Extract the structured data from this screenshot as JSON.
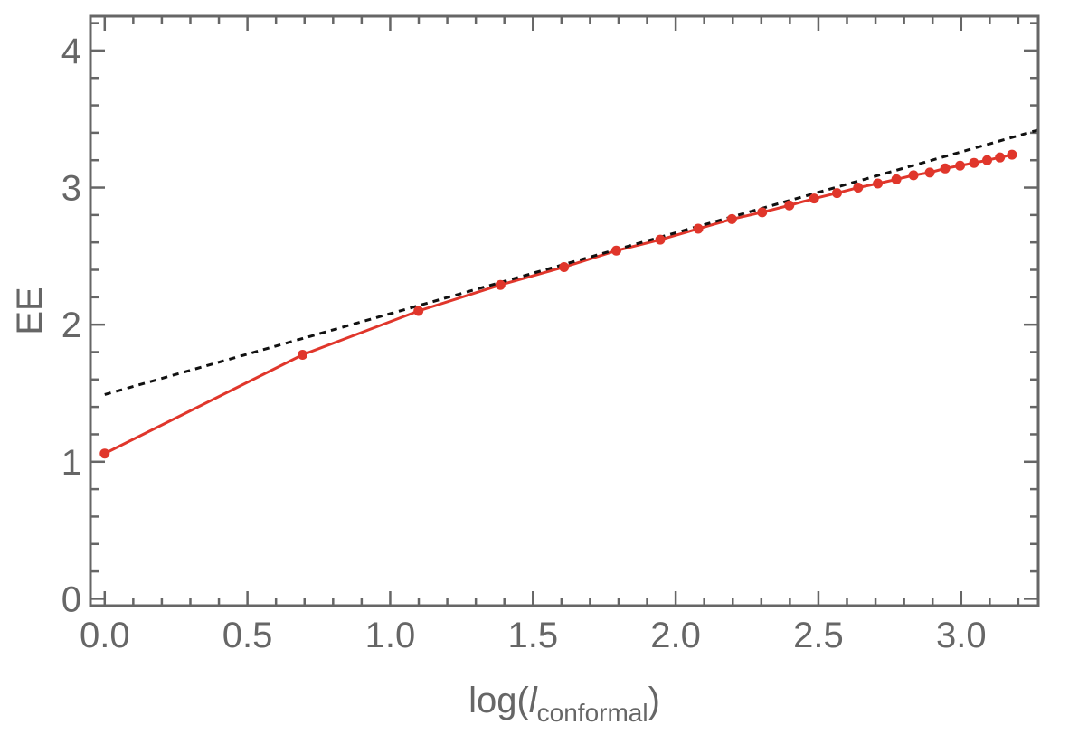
{
  "chart_data": {
    "type": "line",
    "title": "",
    "xlabel": {
      "main": "log(",
      "italic": "l",
      "sub": "conformal",
      "close": ")"
    },
    "ylabel": "EE",
    "xlim": [
      -0.05,
      3.27
    ],
    "ylim": [
      -0.05,
      4.25
    ],
    "x_ticks": [
      0.0,
      0.5,
      1.0,
      1.5,
      2.0,
      2.5,
      3.0
    ],
    "x_tick_labels": [
      "0.0",
      "0.5",
      "1.0",
      "1.5",
      "2.0",
      "2.5",
      "3.0"
    ],
    "y_ticks": [
      0,
      1,
      2,
      3,
      4
    ],
    "y_tick_labels": [
      "0",
      "1",
      "2",
      "3",
      "4"
    ],
    "x_minor_step": 0.1,
    "y_minor_step": 0.2,
    "grid": false,
    "frame": true,
    "series": [
      {
        "kind": "line+markers",
        "color": "#e0362b",
        "x": [
          0.0,
          0.693,
          1.099,
          1.386,
          1.609,
          1.792,
          1.946,
          2.079,
          2.197,
          2.303,
          2.398,
          2.485,
          2.565,
          2.639,
          2.708,
          2.773,
          2.833,
          2.89,
          2.944,
          2.996,
          3.045,
          3.091,
          3.136,
          3.178
        ],
        "y": [
          1.06,
          1.78,
          2.1,
          2.29,
          2.42,
          2.54,
          2.62,
          2.7,
          2.77,
          2.82,
          2.87,
          2.92,
          2.96,
          3.0,
          3.03,
          3.06,
          3.09,
          3.11,
          3.14,
          3.16,
          3.18,
          3.2,
          3.22,
          3.24
        ]
      },
      {
        "kind": "dashed-fit",
        "color": "#111111",
        "x": [
          0.0,
          3.27
        ],
        "y": [
          1.49,
          3.42
        ]
      }
    ]
  }
}
